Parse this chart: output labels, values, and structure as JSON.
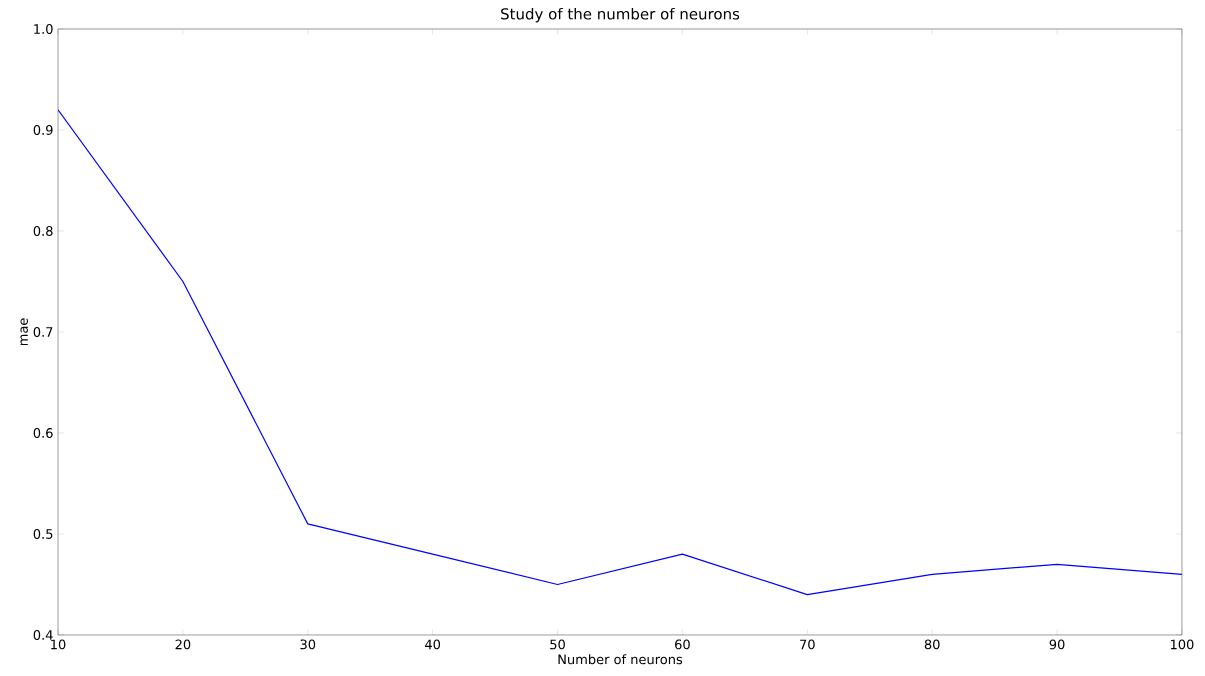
{
  "chart_data": {
    "type": "line",
    "title": "Study of the number of neurons",
    "xlabel": "Number of neurons",
    "ylabel": "mae",
    "x": [
      10,
      20,
      30,
      40,
      50,
      60,
      70,
      80,
      90,
      100
    ],
    "values": [
      0.92,
      0.75,
      0.51,
      0.48,
      0.45,
      0.48,
      0.44,
      0.46,
      0.47,
      0.46
    ],
    "color": "#0000ff",
    "marker": "none",
    "line_style": "solid",
    "xlim": [
      10,
      100
    ],
    "xticks": [
      10,
      20,
      30,
      40,
      50,
      60,
      70,
      80,
      90,
      100
    ],
    "ylim": [
      0.4,
      1.0
    ],
    "yticks": [
      {
        "value": 0.4,
        "label": "0.4"
      },
      {
        "value": 0.5,
        "label": "0.5"
      },
      {
        "value": 0.6,
        "label": "0.6"
      },
      {
        "value": 0.7,
        "label": "0.7"
      },
      {
        "value": 0.8,
        "label": "0.8"
      },
      {
        "value": 0.9,
        "label": "0.9"
      },
      {
        "value": 1.0,
        "label": "1.0"
      }
    ],
    "grid": false
  }
}
